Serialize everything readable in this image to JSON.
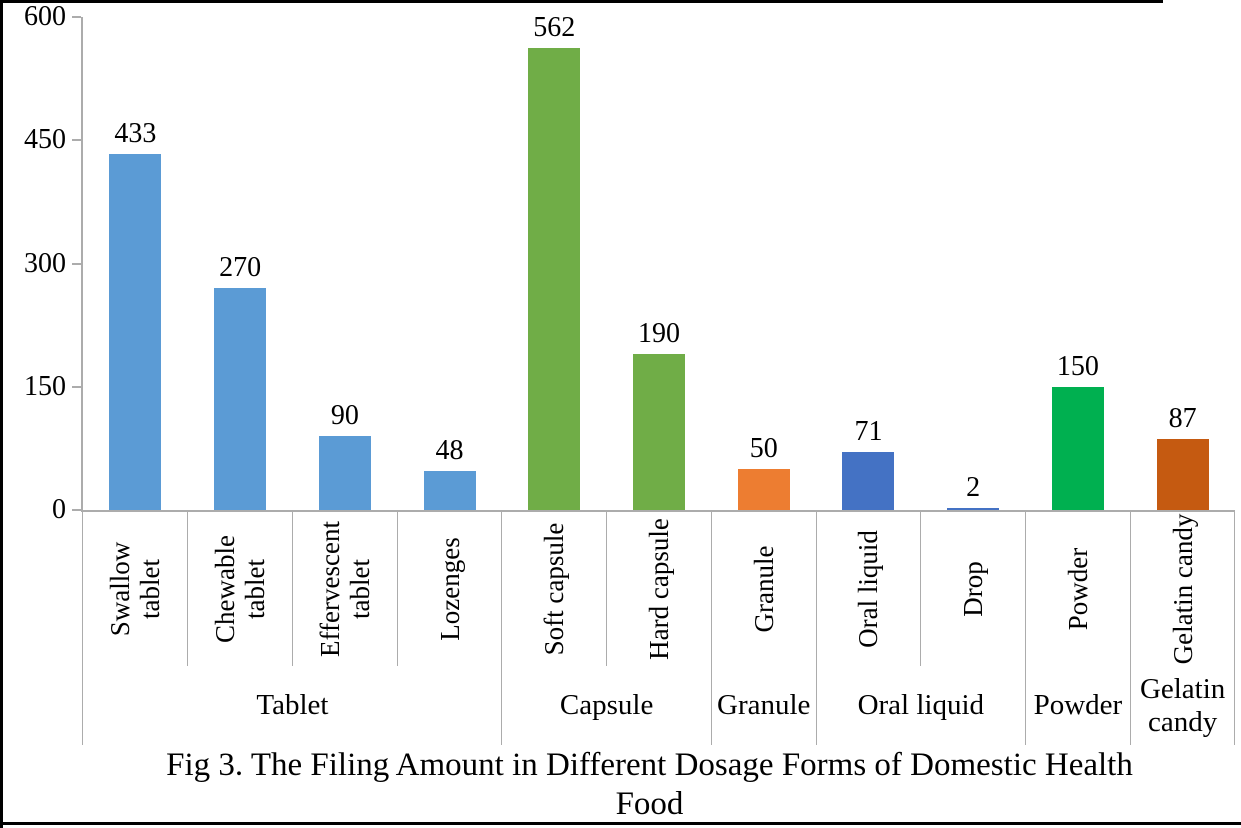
{
  "chart_data": {
    "type": "bar",
    "title": "Fig 3. The Filing Amount in Different Dosage Forms of Domestic Health Food",
    "caption_lines": [
      "Fig 3. The Filing Amount in Different Dosage Forms of Domestic Health",
      "Food"
    ],
    "xlabel": "",
    "ylabel": "",
    "ylim": [
      0,
      600
    ],
    "yticks": [
      0,
      150,
      300,
      450,
      600
    ],
    "grid": false,
    "legend_position": "none",
    "axis_color": "#ACACAC",
    "text_color": "#000000",
    "background_color": "#FFFFFF",
    "groups": [
      {
        "label": "Tablet",
        "items": [
          {
            "label": "Swallow tablet",
            "value": 433,
            "color": "#5B9BD5"
          },
          {
            "label": "Chewable tablet",
            "value": 270,
            "color": "#5B9BD5"
          },
          {
            "label": "Effervescent tablet",
            "value": 90,
            "color": "#5B9BD5"
          },
          {
            "label": "Lozenges",
            "value": 48,
            "color": "#5B9BD5"
          }
        ]
      },
      {
        "label": "Capsule",
        "items": [
          {
            "label": "Soft capsule",
            "value": 562,
            "color": "#70AD47"
          },
          {
            "label": "Hard capsule",
            "value": 190,
            "color": "#70AD47"
          }
        ]
      },
      {
        "label": "Granule",
        "items": [
          {
            "label": "Granule",
            "value": 50,
            "color": "#ED7D31"
          }
        ]
      },
      {
        "label": "Oral liquid",
        "items": [
          {
            "label": "Oral liquid",
            "value": 71,
            "color": "#4472C4"
          },
          {
            "label": "Drop",
            "value": 2,
            "color": "#4472C4"
          }
        ]
      },
      {
        "label": "Powder",
        "items": [
          {
            "label": "Powder",
            "value": 150,
            "color": "#00B050"
          }
        ]
      },
      {
        "label": "Gelatin candy",
        "items": [
          {
            "label": "Gelatin candy",
            "value": 87,
            "color": "#C55A11"
          }
        ]
      }
    ]
  }
}
